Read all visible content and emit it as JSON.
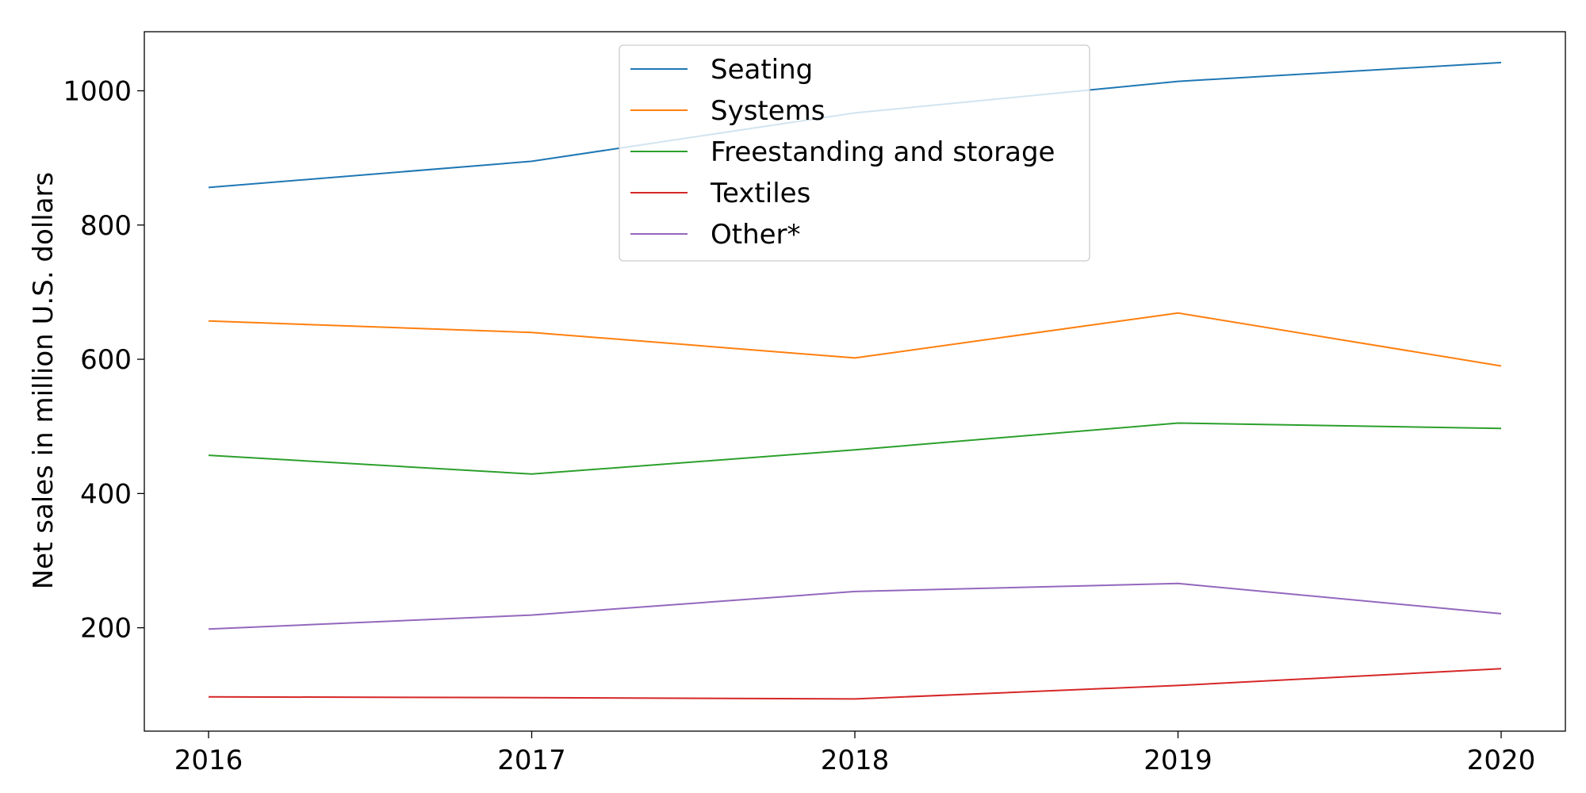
{
  "chart_data": {
    "type": "line",
    "title": "",
    "xlabel": "",
    "ylabel": "Net sales in million U.S. dollars",
    "x": [
      "2016",
      "2017",
      "2018",
      "2019",
      "2020"
    ],
    "ylim": [
      46,
      1088
    ],
    "yticks": [
      200,
      400,
      600,
      800,
      1000
    ],
    "grid": false,
    "legend_position": "top-center",
    "series": [
      {
        "name": "Seating",
        "color": "#1f77b4",
        "values": [
          856,
          895,
          967,
          1014,
          1042
        ]
      },
      {
        "name": "Systems",
        "color": "#ff7f0e",
        "values": [
          657,
          640,
          602,
          669,
          590
        ]
      },
      {
        "name": "Freestanding and storage",
        "color": "#2ca02c",
        "values": [
          457,
          429,
          465,
          505,
          497
        ]
      },
      {
        "name": "Textiles",
        "color": "#d62728",
        "values": [
          97,
          96,
          94,
          114,
          139
        ]
      },
      {
        "name": "Other*",
        "color": "#9467bd",
        "values": [
          198,
          219,
          254,
          266,
          221
        ]
      }
    ]
  }
}
